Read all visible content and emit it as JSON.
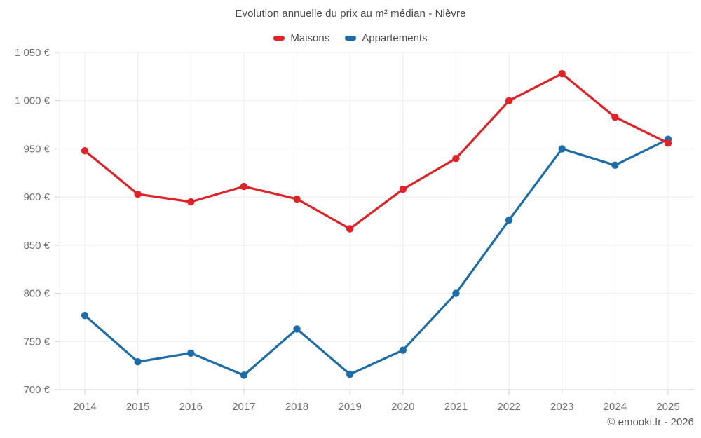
{
  "header": {
    "title": "Evolution annuelle du prix au m² médian - Nièvre"
  },
  "legend": {
    "items": [
      {
        "label": "Maisons",
        "color": "#e02126"
      },
      {
        "label": "Appartements",
        "color": "#1b6ca8"
      }
    ]
  },
  "footer": {
    "copyright": "© emooki.fr - 2026"
  },
  "colors": {
    "background": "#ffffff",
    "grid": "#ececec",
    "axis_line": "#cfcfcf",
    "tick": "#cfcfcf",
    "axis_text": "#707070",
    "title_text": "#4a4a4a",
    "maisons": "#e02126",
    "appartements": "#1b6ca8"
  },
  "chart_data": {
    "type": "line",
    "title": "Evolution annuelle du prix au m² médian - Nièvre",
    "xlabel": "",
    "ylabel": "",
    "categories": [
      "2014",
      "2015",
      "2016",
      "2017",
      "2018",
      "2019",
      "2020",
      "2021",
      "2022",
      "2023",
      "2024",
      "2025"
    ],
    "series": [
      {
        "name": "Maisons",
        "color": "#e02126",
        "values": [
          948,
          903,
          895,
          911,
          898,
          867,
          908,
          940,
          1000,
          1028,
          983,
          956
        ]
      },
      {
        "name": "Appartements",
        "color": "#1b6ca8",
        "values": [
          777,
          729,
          738,
          715,
          763,
          716,
          741,
          800,
          876,
          950,
          933,
          960
        ]
      }
    ],
    "ylim": [
      700,
      1050
    ],
    "y_ticks": [
      700,
      750,
      800,
      850,
      900,
      950,
      1000,
      1050
    ],
    "y_tick_labels": [
      "700 €",
      "750 €",
      "800 €",
      "850 €",
      "900 €",
      "950 €",
      "1 000 €",
      "1 050 €"
    ],
    "grid": true,
    "legend_position": "top",
    "marker_radius": 5.2,
    "line_width": 3.2,
    "annotations": [
      "© emooki.fr - 2026"
    ]
  }
}
